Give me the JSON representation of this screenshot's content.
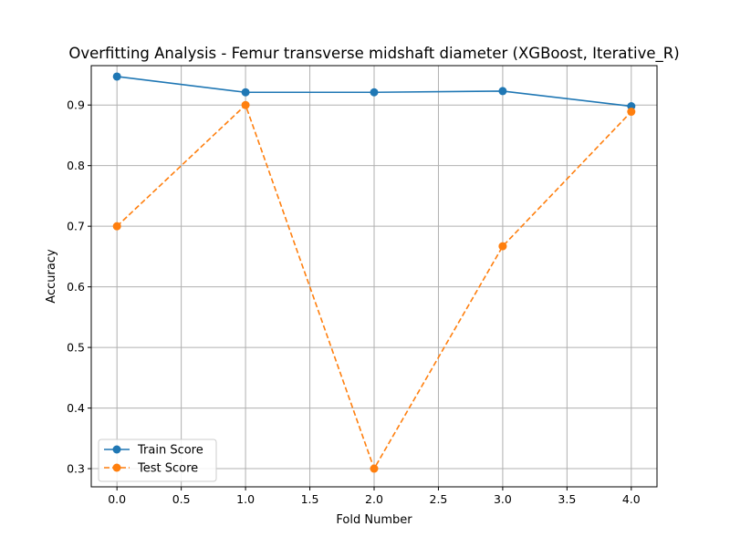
{
  "chart_data": {
    "type": "line",
    "title": "Overfitting Analysis - Femur transverse midshaft diameter (XGBoost, Iterative_R)",
    "xlabel": "Fold Number",
    "ylabel": "Accuracy",
    "xlim": [
      -0.2,
      4.2
    ],
    "ylim": [
      0.27,
      0.965
    ],
    "xticks": [
      0.0,
      0.5,
      1.0,
      1.5,
      2.0,
      2.5,
      3.0,
      3.5,
      4.0
    ],
    "xtick_labels": [
      "0.0",
      "0.5",
      "1.0",
      "1.5",
      "2.0",
      "2.5",
      "3.0",
      "3.5",
      "4.0"
    ],
    "yticks": [
      0.3,
      0.4,
      0.5,
      0.6,
      0.7,
      0.8,
      0.9
    ],
    "ytick_labels": [
      "0.3",
      "0.4",
      "0.5",
      "0.6",
      "0.7",
      "0.8",
      "0.9"
    ],
    "grid": true,
    "legend_position": "lower-left",
    "x": [
      0,
      1,
      2,
      3,
      4
    ],
    "series": [
      {
        "name": "Train Score",
        "values": [
          0.947,
          0.921,
          0.921,
          0.923,
          0.898
        ],
        "color": "#1f77b4",
        "linestyle": "solid",
        "marker": "circle"
      },
      {
        "name": "Test Score",
        "values": [
          0.7,
          0.9,
          0.3,
          0.667,
          0.889
        ],
        "color": "#ff7f0e",
        "linestyle": "dashed",
        "marker": "circle"
      }
    ]
  }
}
